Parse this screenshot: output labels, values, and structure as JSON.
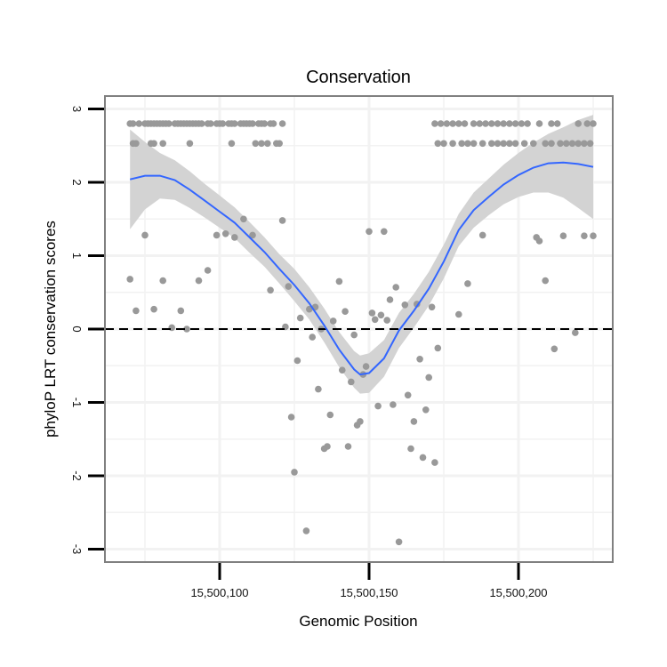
{
  "chart_data": {
    "type": "scatter",
    "title": "Conservation",
    "xlabel": "Genomic Position",
    "ylabel": "phyloP LRT conservation scores",
    "xlim": [
      15500062,
      15500233
    ],
    "ylim": [
      -3.2,
      3.2
    ],
    "x_ticks": [
      15500100,
      15500150,
      15500200
    ],
    "x_tick_labels": [
      "15,500,100",
      "15,500,150",
      "15,500,200"
    ],
    "y_ticks": [
      -3,
      -2,
      -1,
      0,
      1,
      2,
      3
    ],
    "y_tick_labels": [
      "-3",
      "-2",
      "-1",
      "0",
      "1",
      "2",
      "3"
    ],
    "grid": true,
    "reference_line": {
      "y": 0,
      "style": "dashed"
    },
    "colors": {
      "points": "#999999",
      "smooth": "#3366ff",
      "band": "#d3d3d3",
      "panel_border": "#808080",
      "grid": "#f2f2f2"
    },
    "points": [
      [
        15500070,
        2.8
      ],
      [
        15500071,
        2.8
      ],
      [
        15500073,
        2.8
      ],
      [
        15500075,
        2.8
      ],
      [
        15500076,
        2.8
      ],
      [
        15500077,
        2.8
      ],
      [
        15500078,
        2.8
      ],
      [
        15500079,
        2.8
      ],
      [
        15500080,
        2.8
      ],
      [
        15500081,
        2.8
      ],
      [
        15500082,
        2.8
      ],
      [
        15500083,
        2.8
      ],
      [
        15500085,
        2.8
      ],
      [
        15500086,
        2.8
      ],
      [
        15500087,
        2.8
      ],
      [
        15500088,
        2.8
      ],
      [
        15500089,
        2.8
      ],
      [
        15500090,
        2.8
      ],
      [
        15500091,
        2.8
      ],
      [
        15500092,
        2.8
      ],
      [
        15500093,
        2.8
      ],
      [
        15500094,
        2.8
      ],
      [
        15500096,
        2.8
      ],
      [
        15500097,
        2.8
      ],
      [
        15500099,
        2.8
      ],
      [
        15500100,
        2.8
      ],
      [
        15500101,
        2.8
      ],
      [
        15500103,
        2.8
      ],
      [
        15500104,
        2.8
      ],
      [
        15500105,
        2.8
      ],
      [
        15500107,
        2.8
      ],
      [
        15500108,
        2.8
      ],
      [
        15500109,
        2.8
      ],
      [
        15500110,
        2.8
      ],
      [
        15500111,
        2.8
      ],
      [
        15500113,
        2.8
      ],
      [
        15500114,
        2.8
      ],
      [
        15500115,
        2.8
      ],
      [
        15500117,
        2.8
      ],
      [
        15500118,
        2.8
      ],
      [
        15500121,
        2.8
      ],
      [
        15500071,
        2.53
      ],
      [
        15500072,
        2.53
      ],
      [
        15500077,
        2.53
      ],
      [
        15500078,
        2.53
      ],
      [
        15500081,
        2.53
      ],
      [
        15500090,
        2.53
      ],
      [
        15500104,
        2.53
      ],
      [
        15500112,
        2.53
      ],
      [
        15500114,
        2.53
      ],
      [
        15500116,
        2.53
      ],
      [
        15500119,
        2.53
      ],
      [
        15500120,
        2.53
      ],
      [
        15500070,
        0.68
      ],
      [
        15500072,
        0.25
      ],
      [
        15500075,
        1.28
      ],
      [
        15500078,
        0.27
      ],
      [
        15500081,
        0.66
      ],
      [
        15500084,
        0.02
      ],
      [
        15500087,
        0.25
      ],
      [
        15500089,
        0.0
      ],
      [
        15500093,
        0.66
      ],
      [
        15500096,
        0.8
      ],
      [
        15500099,
        1.28
      ],
      [
        15500102,
        1.3
      ],
      [
        15500105,
        1.25
      ],
      [
        15500108,
        1.5
      ],
      [
        15500111,
        1.28
      ],
      [
        15500117,
        0.53
      ],
      [
        15500121,
        1.48
      ],
      [
        15500122,
        0.03
      ],
      [
        15500123,
        0.58
      ],
      [
        15500124,
        -1.2
      ],
      [
        15500125,
        -1.95
      ],
      [
        15500126,
        -0.43
      ],
      [
        15500127,
        0.15
      ],
      [
        15500129,
        -2.75
      ],
      [
        15500130,
        0.27
      ],
      [
        15500131,
        -0.11
      ],
      [
        15500132,
        0.3
      ],
      [
        15500133,
        -0.82
      ],
      [
        15500134,
        0.0
      ],
      [
        15500135,
        -1.63
      ],
      [
        15500136,
        -1.6
      ],
      [
        15500137,
        -1.17
      ],
      [
        15500138,
        0.11
      ],
      [
        15500140,
        0.65
      ],
      [
        15500141,
        -0.56
      ],
      [
        15500142,
        0.24
      ],
      [
        15500143,
        -1.6
      ],
      [
        15500144,
        -0.72
      ],
      [
        15500145,
        -0.08
      ],
      [
        15500146,
        -1.31
      ],
      [
        15500147,
        -1.26
      ],
      [
        15500148,
        -0.62
      ],
      [
        15500149,
        -0.51
      ],
      [
        15500150,
        1.33
      ],
      [
        15500151,
        0.22
      ],
      [
        15500152,
        0.13
      ],
      [
        15500153,
        -1.05
      ],
      [
        15500154,
        0.19
      ],
      [
        15500155,
        1.33
      ],
      [
        15500156,
        0.12
      ],
      [
        15500157,
        0.4
      ],
      [
        15500158,
        -1.03
      ],
      [
        15500159,
        0.57
      ],
      [
        15500160,
        -2.9
      ],
      [
        15500162,
        0.33
      ],
      [
        15500163,
        -0.9
      ],
      [
        15500164,
        -1.63
      ],
      [
        15500165,
        -1.26
      ],
      [
        15500166,
        0.34
      ],
      [
        15500167,
        -0.41
      ],
      [
        15500168,
        -1.75
      ],
      [
        15500169,
        -1.1
      ],
      [
        15500170,
        -0.66
      ],
      [
        15500171,
        0.3
      ],
      [
        15500172,
        -1.82
      ],
      [
        15500173,
        -0.26
      ],
      [
        15500180,
        0.2
      ],
      [
        15500183,
        0.62
      ],
      [
        15500188,
        1.28
      ],
      [
        15500206,
        1.25
      ],
      [
        15500207,
        1.2
      ],
      [
        15500209,
        0.66
      ],
      [
        15500212,
        -0.27
      ],
      [
        15500215,
        1.27
      ],
      [
        15500219,
        -0.05
      ],
      [
        15500222,
        1.27
      ],
      [
        15500225,
        1.27
      ],
      [
        15500172,
        2.8
      ],
      [
        15500174,
        2.8
      ],
      [
        15500176,
        2.8
      ],
      [
        15500178,
        2.8
      ],
      [
        15500180,
        2.8
      ],
      [
        15500182,
        2.8
      ],
      [
        15500185,
        2.8
      ],
      [
        15500187,
        2.8
      ],
      [
        15500189,
        2.8
      ],
      [
        15500191,
        2.8
      ],
      [
        15500193,
        2.8
      ],
      [
        15500195,
        2.8
      ],
      [
        15500197,
        2.8
      ],
      [
        15500199,
        2.8
      ],
      [
        15500201,
        2.8
      ],
      [
        15500203,
        2.8
      ],
      [
        15500207,
        2.8
      ],
      [
        15500211,
        2.8
      ],
      [
        15500213,
        2.8
      ],
      [
        15500220,
        2.8
      ],
      [
        15500223,
        2.8
      ],
      [
        15500225,
        2.8
      ],
      [
        15500173,
        2.53
      ],
      [
        15500175,
        2.53
      ],
      [
        15500178,
        2.53
      ],
      [
        15500181,
        2.53
      ],
      [
        15500183,
        2.53
      ],
      [
        15500185,
        2.53
      ],
      [
        15500188,
        2.53
      ],
      [
        15500191,
        2.53
      ],
      [
        15500193,
        2.53
      ],
      [
        15500195,
        2.53
      ],
      [
        15500197,
        2.53
      ],
      [
        15500199,
        2.53
      ],
      [
        15500202,
        2.53
      ],
      [
        15500205,
        2.53
      ],
      [
        15500209,
        2.53
      ],
      [
        15500211,
        2.53
      ],
      [
        15500214,
        2.53
      ],
      [
        15500216,
        2.53
      ],
      [
        15500218,
        2.53
      ],
      [
        15500220,
        2.53
      ],
      [
        15500222,
        2.53
      ],
      [
        15500224,
        2.53
      ]
    ],
    "smooth": [
      [
        15500070,
        2.04
      ],
      [
        15500075,
        2.09
      ],
      [
        15500080,
        2.09
      ],
      [
        15500085,
        2.03
      ],
      [
        15500090,
        1.9
      ],
      [
        15500095,
        1.75
      ],
      [
        15500100,
        1.6
      ],
      [
        15500105,
        1.45
      ],
      [
        15500110,
        1.25
      ],
      [
        15500115,
        1.05
      ],
      [
        15500120,
        0.82
      ],
      [
        15500125,
        0.6
      ],
      [
        15500130,
        0.35
      ],
      [
        15500135,
        0.05
      ],
      [
        15500140,
        -0.28
      ],
      [
        15500145,
        -0.55
      ],
      [
        15500147,
        -0.62
      ],
      [
        15500150,
        -0.6
      ],
      [
        15500155,
        -0.4
      ],
      [
        15500160,
        -0.02
      ],
      [
        15500165,
        0.25
      ],
      [
        15500170,
        0.55
      ],
      [
        15500175,
        0.92
      ],
      [
        15500180,
        1.35
      ],
      [
        15500185,
        1.62
      ],
      [
        15500190,
        1.8
      ],
      [
        15500195,
        1.97
      ],
      [
        15500200,
        2.1
      ],
      [
        15500205,
        2.2
      ],
      [
        15500210,
        2.26
      ],
      [
        15500215,
        2.27
      ],
      [
        15500220,
        2.25
      ],
      [
        15500225,
        2.21
      ]
    ],
    "band_upper": [
      [
        15500070,
        2.72
      ],
      [
        15500075,
        2.55
      ],
      [
        15500080,
        2.4
      ],
      [
        15500085,
        2.3
      ],
      [
        15500090,
        2.15
      ],
      [
        15500095,
        1.98
      ],
      [
        15500100,
        1.82
      ],
      [
        15500105,
        1.66
      ],
      [
        15500110,
        1.46
      ],
      [
        15500115,
        1.25
      ],
      [
        15500120,
        1.02
      ],
      [
        15500125,
        0.82
      ],
      [
        15500130,
        0.57
      ],
      [
        15500135,
        0.28
      ],
      [
        15500140,
        -0.04
      ],
      [
        15500145,
        -0.3
      ],
      [
        15500147,
        -0.36
      ],
      [
        15500150,
        -0.33
      ],
      [
        15500155,
        -0.15
      ],
      [
        15500160,
        0.22
      ],
      [
        15500165,
        0.48
      ],
      [
        15500170,
        0.78
      ],
      [
        15500175,
        1.15
      ],
      [
        15500180,
        1.57
      ],
      [
        15500185,
        1.86
      ],
      [
        15500190,
        2.05
      ],
      [
        15500195,
        2.24
      ],
      [
        15500200,
        2.4
      ],
      [
        15500205,
        2.54
      ],
      [
        15500210,
        2.66
      ],
      [
        15500215,
        2.75
      ],
      [
        15500220,
        2.85
      ],
      [
        15500225,
        2.92
      ]
    ],
    "band_lower": [
      [
        15500070,
        1.36
      ],
      [
        15500075,
        1.63
      ],
      [
        15500080,
        1.78
      ],
      [
        15500085,
        1.76
      ],
      [
        15500090,
        1.65
      ],
      [
        15500095,
        1.52
      ],
      [
        15500100,
        1.38
      ],
      [
        15500105,
        1.24
      ],
      [
        15500110,
        1.04
      ],
      [
        15500115,
        0.85
      ],
      [
        15500120,
        0.62
      ],
      [
        15500125,
        0.38
      ],
      [
        15500130,
        0.13
      ],
      [
        15500135,
        -0.18
      ],
      [
        15500140,
        -0.52
      ],
      [
        15500145,
        -0.8
      ],
      [
        15500147,
        -0.88
      ],
      [
        15500150,
        -0.87
      ],
      [
        15500155,
        -0.65
      ],
      [
        15500160,
        -0.26
      ],
      [
        15500165,
        0.02
      ],
      [
        15500170,
        0.32
      ],
      [
        15500175,
        0.69
      ],
      [
        15500180,
        1.13
      ],
      [
        15500185,
        1.38
      ],
      [
        15500190,
        1.55
      ],
      [
        15500195,
        1.7
      ],
      [
        15500200,
        1.8
      ],
      [
        15500205,
        1.86
      ],
      [
        15500210,
        1.86
      ],
      [
        15500215,
        1.79
      ],
      [
        15500220,
        1.65
      ],
      [
        15500225,
        1.5
      ]
    ]
  }
}
